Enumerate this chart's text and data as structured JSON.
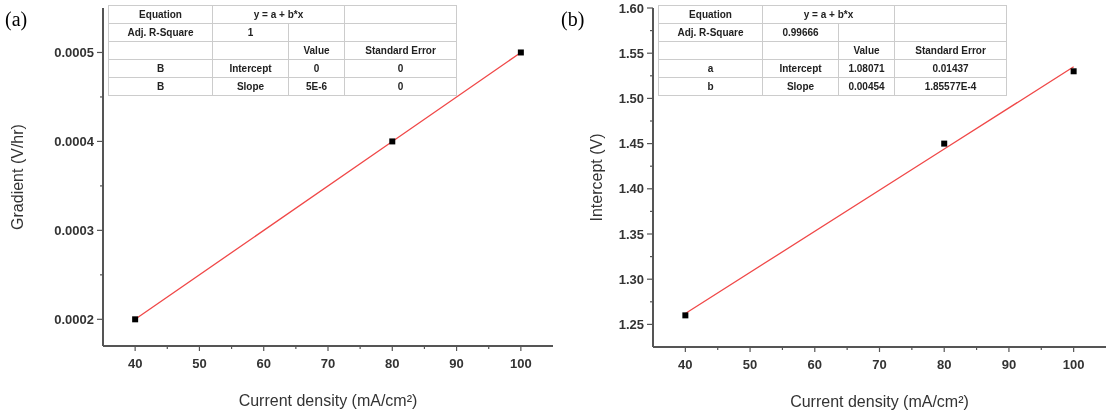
{
  "chart_data": [
    {
      "type": "scatter",
      "title": "(a)",
      "xlabel": "Current density (mA/cm²)",
      "ylabel": "Gradient (V/hr)",
      "x": [
        40,
        80,
        100
      ],
      "grid": false,
      "series": [
        {
          "color": "#000000",
          "marker": "square",
          "values": [
            0.0002,
            0.0004,
            0.0005
          ]
        },
        {
          "type": "line",
          "color": "#f04848",
          "values": [
            0.0002,
            0.0004,
            0.0005
          ]
        }
      ],
      "xlim": [
        35,
        105
      ],
      "ylim": [
        0.00017,
        0.00055
      ],
      "xticks": [
        40,
        {
          "value": 45,
          "label": null
        },
        50,
        {
          "value": 55,
          "label": null
        },
        60,
        {
          "value": 65,
          "label": null
        },
        70,
        {
          "value": 75,
          "label": null
        },
        80,
        {
          "value": 85,
          "label": null
        },
        90,
        {
          "value": 95,
          "label": null
        },
        100
      ],
      "yticks": [
        0.0002,
        {
          "value": 0.00025,
          "label": null
        },
        0.0003,
        {
          "value": 0.00035,
          "label": null
        },
        0.0004,
        {
          "value": 0.00045,
          "label": null
        },
        0.0005
      ],
      "annotations": [
        "Equation",
        "y = a + b*x",
        "Adj. R-Square",
        "1",
        "Value",
        "Standard Error",
        "B",
        "Intercept",
        "0",
        "0",
        "B",
        "Slope",
        "5E-6",
        "0"
      ]
    },
    {
      "type": "scatter",
      "title": "(b)",
      "xlabel": "Current density (mA/cm²)",
      "ylabel": "Intercept (V)",
      "x": [
        40,
        80,
        100
      ],
      "grid": false,
      "series": [
        {
          "color": "#000000",
          "marker": "square",
          "values": [
            1.26,
            1.45,
            1.53
          ]
        },
        {
          "type": "line",
          "color": "#f04848",
          "values": [
            1.262,
            1.444,
            1.535
          ]
        }
      ],
      "xlim": [
        35,
        105
      ],
      "ylim": [
        1.225,
        1.6
      ],
      "xticks": [
        40,
        {
          "value": 45,
          "label": null
        },
        50,
        {
          "value": 55,
          "label": null
        },
        60,
        {
          "value": 65,
          "label": null
        },
        70,
        {
          "value": 75,
          "label": null
        },
        80,
        {
          "value": 85,
          "label": null
        },
        90,
        {
          "value": 95,
          "label": null
        },
        100
      ],
      "yticks": [
        1.25,
        {
          "value": 1.275,
          "label": null
        },
        {
          "value": 1.3,
          "label": "1.30"
        },
        {
          "value": 1.325,
          "label": null
        },
        1.35,
        {
          "value": 1.375,
          "label": null
        },
        {
          "value": 1.4,
          "label": "1.40"
        },
        {
          "value": 1.425,
          "label": null
        },
        1.45,
        {
          "value": 1.475,
          "label": null
        },
        {
          "value": 1.5,
          "label": "1.50"
        },
        {
          "value": 1.525,
          "label": null
        },
        1.55,
        {
          "value": 1.575,
          "label": null
        },
        {
          "value": 1.6,
          "label": "1.60"
        }
      ],
      "annotations": [
        "Equation",
        "y = a + b*x",
        "Adj. R-Square",
        "0.99666",
        "Value",
        "Standard Error",
        "a",
        "Intercept",
        "1.08071",
        "0.01437",
        "b",
        "Slope",
        "0.00454",
        "1.85577E-4"
      ]
    }
  ]
}
